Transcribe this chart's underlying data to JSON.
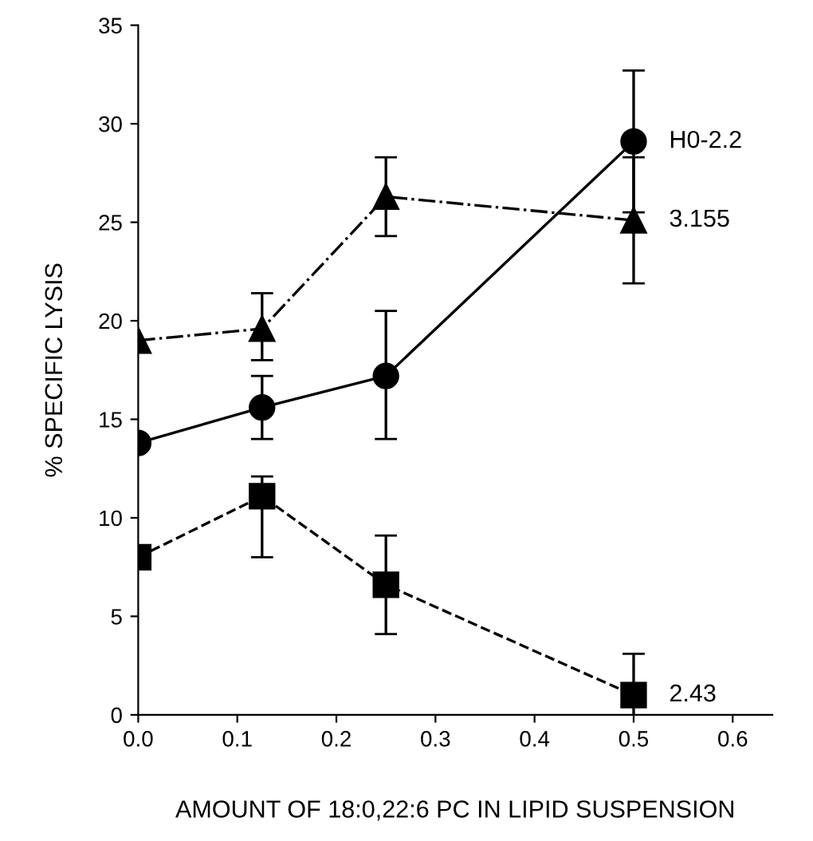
{
  "chart_data": {
    "type": "line",
    "xlabel": "AMOUNT OF 18:0,22:6 PC IN LIPID SUSPENSION",
    "ylabel": "% SPECIFIC LYSIS",
    "x": [
      0.0,
      0.125,
      0.25,
      0.5
    ],
    "series": [
      {
        "name": "H0-2.2",
        "color": "#000000",
        "marker": "circle",
        "line_style": "solid",
        "values": [
          13.8,
          15.6,
          17.2,
          29.1
        ],
        "errors": [
          null,
          1.6,
          [
            14.0,
            20.5
          ],
          3.6
        ]
      },
      {
        "name": "3.155",
        "color": "#000000",
        "marker": "triangle",
        "line_style": "dashdot",
        "values": [
          19.0,
          19.6,
          26.3,
          25.1
        ],
        "errors": [
          null,
          [
            18.0,
            21.4
          ],
          2.0,
          3.2
        ]
      },
      {
        "name": "2.43",
        "color": "#000000",
        "marker": "square",
        "line_style": "dashed",
        "values": [
          8.0,
          11.1,
          6.6,
          1.0
        ],
        "errors": [
          null,
          [
            8.0,
            12.1
          ],
          2.5,
          2.1
        ]
      }
    ],
    "xlim": [
      0.0,
      0.64
    ],
    "ylim": [
      0,
      35
    ],
    "xticks": [
      {
        "value": 0.0,
        "label": "0.0"
      },
      0.1,
      0.2,
      0.3,
      0.4,
      0.5,
      0.6
    ],
    "yticks": [
      0,
      5,
      10,
      15,
      20,
      25,
      30,
      35
    ],
    "grid": false,
    "legend": false
  }
}
